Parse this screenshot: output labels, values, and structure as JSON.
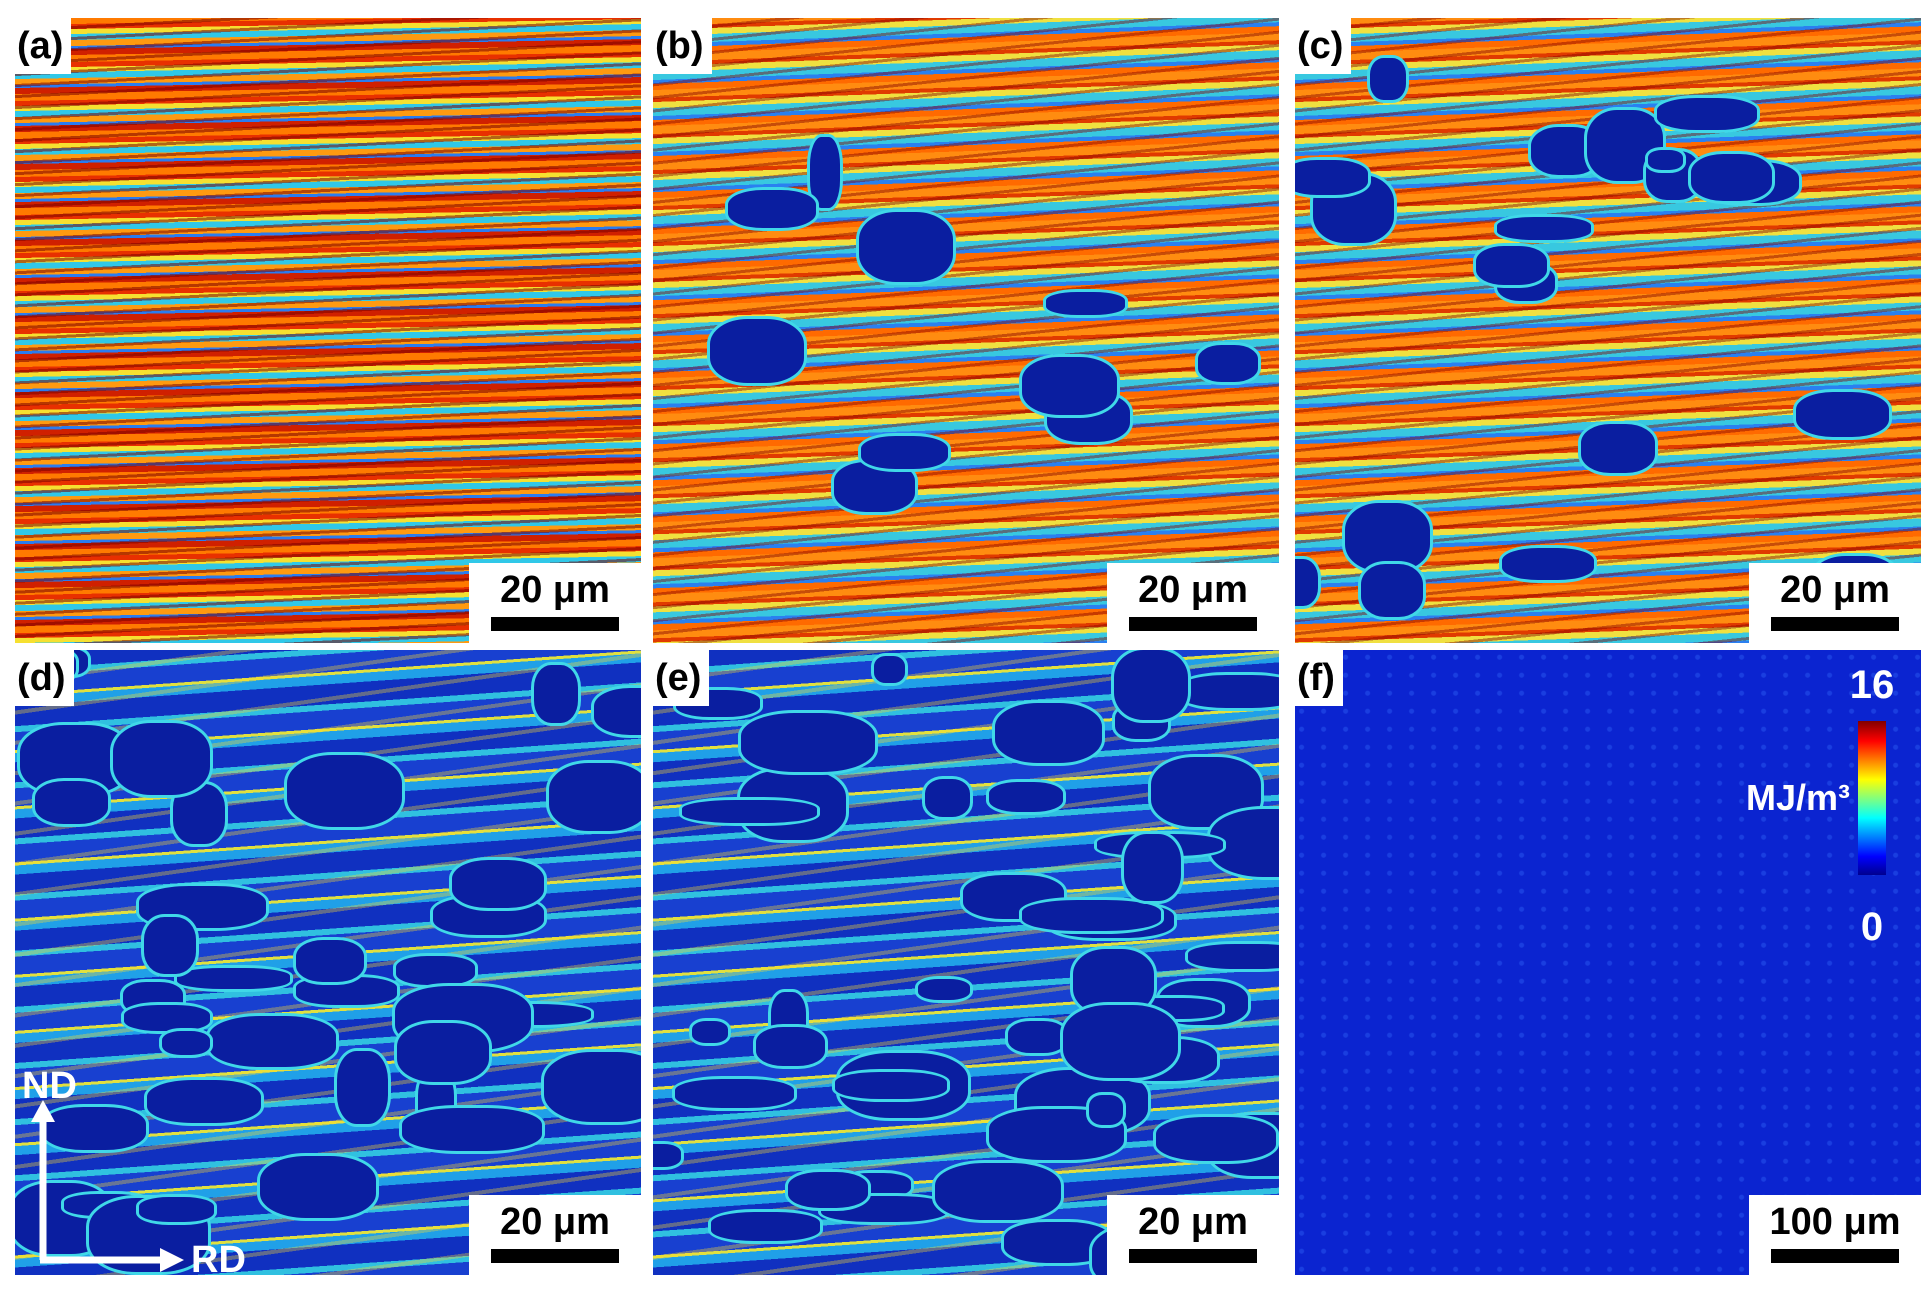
{
  "panels": [
    {
      "label": "(a)",
      "scale_bar": "20 μm"
    },
    {
      "label": "(b)",
      "scale_bar": "20 μm"
    },
    {
      "label": "(c)",
      "scale_bar": "20 μm"
    },
    {
      "label": "(d)",
      "scale_bar": "20 μm"
    },
    {
      "label": "(e)",
      "scale_bar": "20 μm"
    },
    {
      "label": "(f)",
      "scale_bar": "100 μm"
    }
  ],
  "colorbar": {
    "max": 16,
    "min": 0,
    "unit": "MJ/m³"
  },
  "axes": {
    "vertical": "ND",
    "horizontal": "RD"
  }
}
